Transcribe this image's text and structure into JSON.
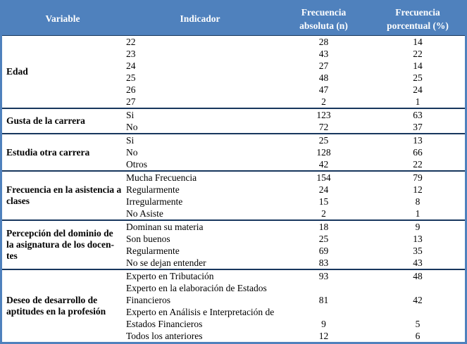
{
  "colors": {
    "header_bg": "#4f81bd",
    "outer_border": "#4f81bd",
    "group_separator": "#17365d",
    "header_text": "#ffffff",
    "body_text": "#000000"
  },
  "table": {
    "header": {
      "variable": "Variable",
      "indicador": "Indicador",
      "abs_line1": "Frecuencia",
      "abs_line2": "absoluta (n)",
      "pct_line1": "Frecuencia",
      "pct_line2": "porcentual (%)"
    },
    "groups": [
      {
        "variable": "Edad",
        "rows": [
          [
            "22",
            "28",
            "14"
          ],
          [
            "23",
            "43",
            "22"
          ],
          [
            "24",
            "27",
            "14"
          ],
          [
            "25",
            "48",
            "25"
          ],
          [
            "26",
            "47",
            "24"
          ],
          [
            "27",
            "2",
            "1"
          ]
        ]
      },
      {
        "variable": "Gusta de la carrera",
        "rows": [
          [
            "Si",
            "123",
            "63"
          ],
          [
            "No",
            "72",
            "37"
          ]
        ]
      },
      {
        "variable": "Estudia otra carrera",
        "rows": [
          [
            "Si",
            "25",
            "13"
          ],
          [
            "No",
            "128",
            "66"
          ],
          [
            "Otros",
            "42",
            "22"
          ]
        ]
      },
      {
        "variable": "Frecuencia en la asistencia a clases",
        "rows": [
          [
            "Mucha Frecuencia",
            "154",
            "79"
          ],
          [
            "Regularmente",
            "24",
            "12"
          ],
          [
            "Irregularmente",
            "15",
            "8"
          ],
          [
            "No Asiste",
            "2",
            "1"
          ]
        ]
      },
      {
        "variable": "Percepción del dominio de la asignatura de los docen-tes",
        "rows": [
          [
            "Dominan su materia",
            "18",
            "9"
          ],
          [
            "Son buenos",
            "25",
            "13"
          ],
          [
            "Regularmente",
            "69",
            "35"
          ],
          [
            "No se dejan entender",
            "83",
            "43"
          ]
        ]
      },
      {
        "variable": "Deseo de desarrollo de aptitudes en la profesión",
        "rows": [
          [
            "Experto en Tributación",
            "93",
            "48"
          ],
          [
            "Experto en la elaboración de Estados Financieros",
            "81",
            "42"
          ],
          [
            "Experto en Análisis e Interpretación de Estados Financieros",
            "9",
            "5"
          ],
          [
            "Todos los anteriores",
            "12",
            "6"
          ]
        ]
      }
    ]
  }
}
